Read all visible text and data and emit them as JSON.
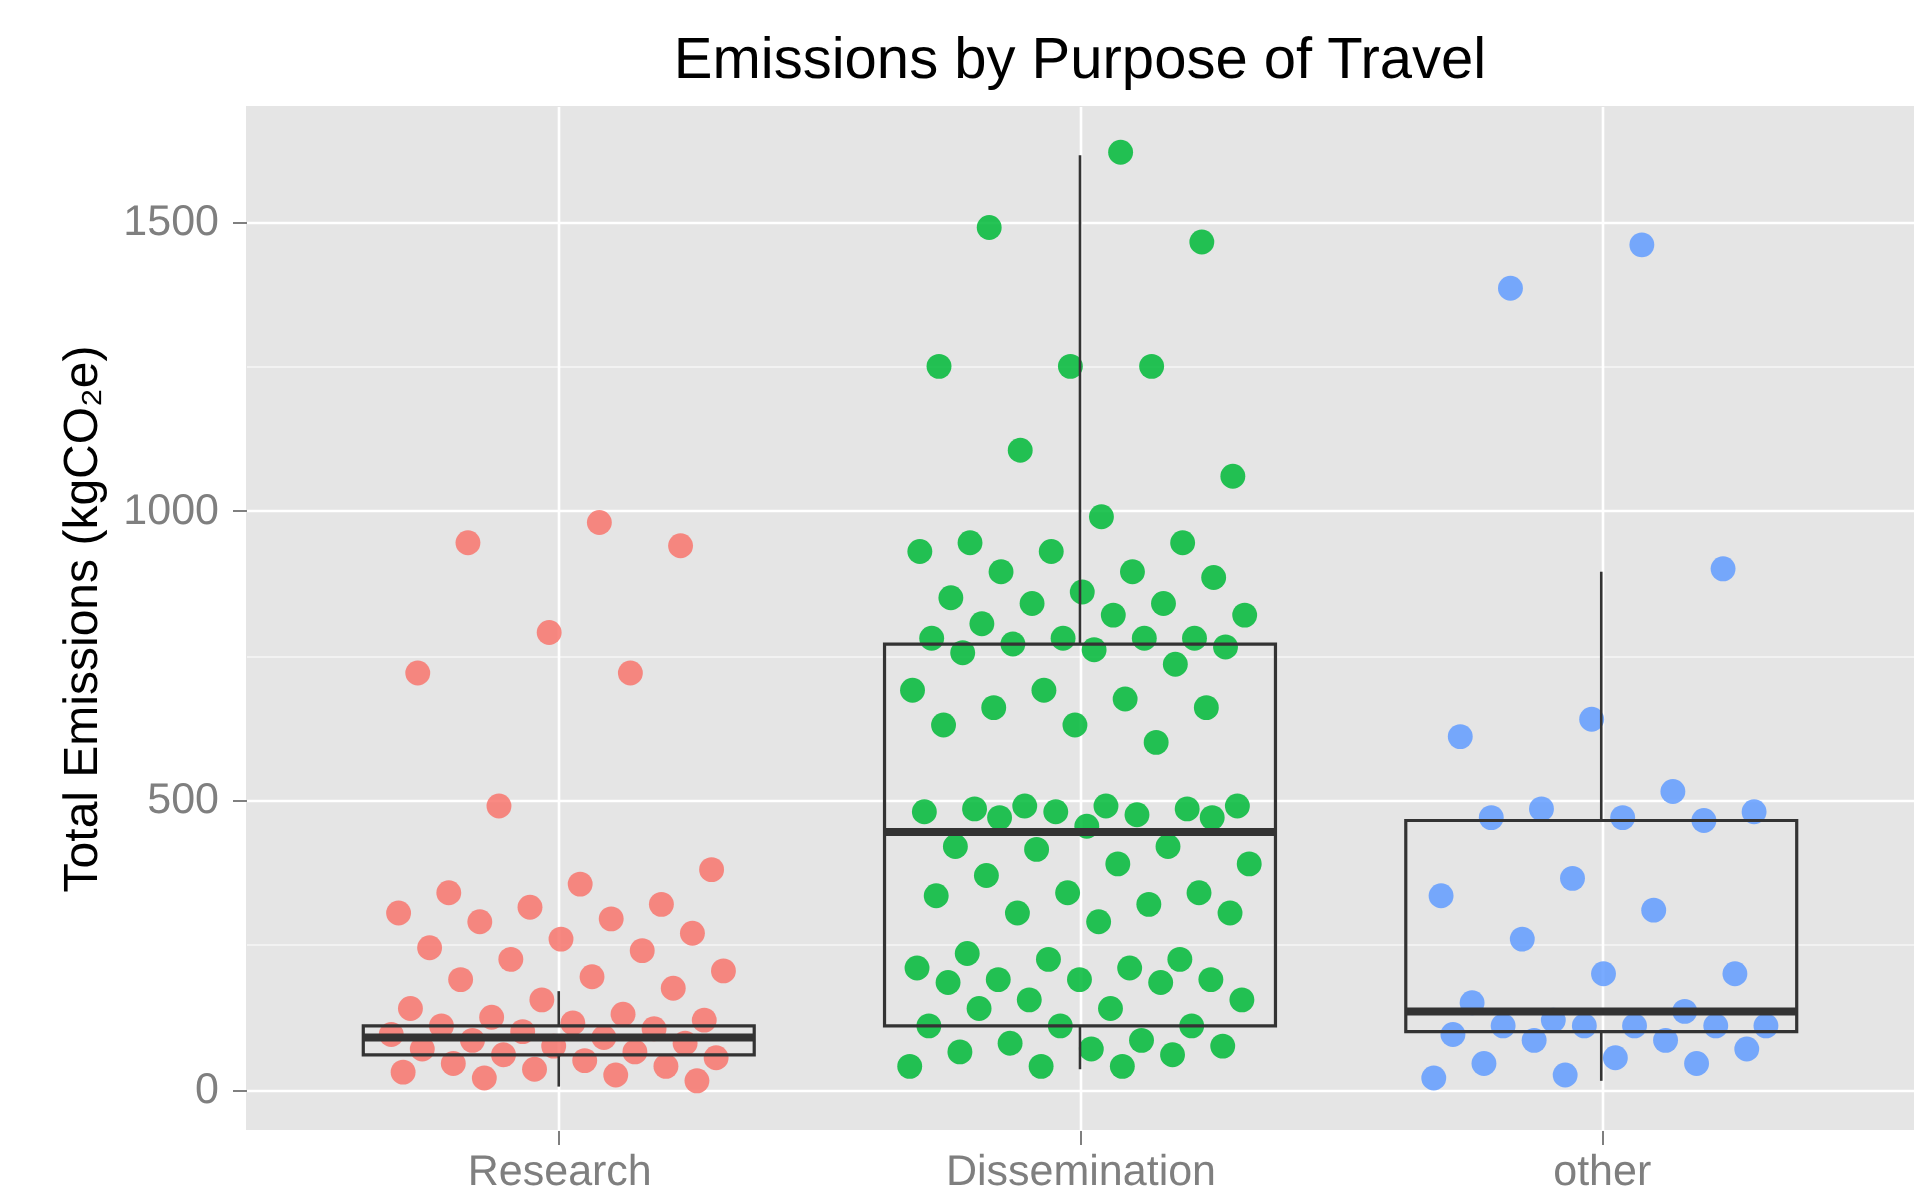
{
  "chart_data": {
    "type": "box",
    "title": "Emissions by Purpose of Travel",
    "ylabel": "Total Emissions (kgCO₂e)",
    "categories": [
      "Research",
      "Dissemination",
      "other"
    ],
    "ylim": [
      -70,
      1700
    ],
    "yticks": [
      0,
      {
        "value": 250,
        "label": null
      },
      500,
      {
        "value": 750,
        "label": null
      },
      1000,
      {
        "value": 1250,
        "label": null
      },
      1500
    ],
    "grid": true,
    "marker": "circle",
    "series": [
      {
        "type": "scatter",
        "color": "#F8766D",
        "x": [
          "Research",
          "Research",
          "Research",
          "Research",
          "Research",
          "Research",
          "Research",
          "Research",
          "Research",
          "Research",
          "Research",
          "Research",
          "Research",
          "Research",
          "Research",
          "Research",
          "Research",
          "Research",
          "Research",
          "Research",
          "Research",
          "Research",
          "Research",
          "Research",
          "Research",
          "Research",
          "Research",
          "Research",
          "Research",
          "Research",
          "Research",
          "Research",
          "Research",
          "Research",
          "Research",
          "Research",
          "Research",
          "Research",
          "Research",
          "Research",
          "Research",
          "Research",
          "Research",
          "Research",
          "Research",
          "Research",
          "Research",
          "Research",
          "Research",
          "Research"
        ],
        "values": [
          980,
          945,
          940,
          790,
          720,
          720,
          490,
          380,
          355,
          340,
          320,
          315,
          305,
          295,
          290,
          270,
          260,
          245,
          240,
          225,
          205,
          195,
          190,
          175,
          155,
          140,
          130,
          125,
          120,
          115,
          110,
          105,
          100,
          95,
          90,
          85,
          80,
          75,
          70,
          65,
          60,
          55,
          50,
          45,
          40,
          35,
          30,
          25,
          20,
          15
        ]
      },
      {
        "type": "scatter",
        "color": "#00BA38",
        "x": [
          "Dissemination",
          "Dissemination",
          "Dissemination",
          "Dissemination",
          "Dissemination",
          "Dissemination",
          "Dissemination",
          "Dissemination",
          "Dissemination",
          "Dissemination",
          "Dissemination",
          "Dissemination",
          "Dissemination",
          "Dissemination",
          "Dissemination",
          "Dissemination",
          "Dissemination",
          "Dissemination",
          "Dissemination",
          "Dissemination",
          "Dissemination",
          "Dissemination",
          "Dissemination",
          "Dissemination",
          "Dissemination",
          "Dissemination",
          "Dissemination",
          "Dissemination",
          "Dissemination",
          "Dissemination",
          "Dissemination",
          "Dissemination",
          "Dissemination",
          "Dissemination",
          "Dissemination",
          "Dissemination",
          "Dissemination",
          "Dissemination",
          "Dissemination",
          "Dissemination",
          "Dissemination",
          "Dissemination",
          "Dissemination",
          "Dissemination",
          "Dissemination",
          "Dissemination",
          "Dissemination",
          "Dissemination",
          "Dissemination",
          "Dissemination",
          "Dissemination",
          "Dissemination",
          "Dissemination",
          "Dissemination",
          "Dissemination",
          "Dissemination",
          "Dissemination",
          "Dissemination",
          "Dissemination",
          "Dissemination",
          "Dissemination",
          "Dissemination",
          "Dissemination",
          "Dissemination",
          "Dissemination",
          "Dissemination",
          "Dissemination",
          "Dissemination",
          "Dissemination",
          "Dissemination",
          "Dissemination",
          "Dissemination",
          "Dissemination",
          "Dissemination",
          "Dissemination",
          "Dissemination",
          "Dissemination",
          "Dissemination",
          "Dissemination",
          "Dissemination",
          "Dissemination",
          "Dissemination",
          "Dissemination",
          "Dissemination",
          "Dissemination",
          "Dissemination",
          "Dissemination",
          "Dissemination",
          "Dissemination",
          "Dissemination"
        ],
        "values": [
          1620,
          1490,
          1465,
          1250,
          1250,
          1250,
          1105,
          1060,
          990,
          945,
          945,
          930,
          930,
          895,
          895,
          885,
          860,
          850,
          840,
          840,
          820,
          820,
          805,
          780,
          780,
          780,
          780,
          770,
          765,
          760,
          755,
          735,
          690,
          690,
          675,
          660,
          660,
          630,
          630,
          600,
          490,
          490,
          490,
          485,
          485,
          480,
          480,
          475,
          470,
          470,
          455,
          420,
          420,
          415,
          390,
          390,
          370,
          340,
          340,
          335,
          320,
          305,
          305,
          290,
          235,
          225,
          225,
          210,
          210,
          190,
          190,
          190,
          185,
          185,
          155,
          155,
          140,
          140,
          110,
          110,
          110,
          85,
          80,
          75,
          70,
          65,
          60,
          40,
          40,
          40
        ]
      },
      {
        "type": "scatter",
        "color": "#619CFF",
        "x": [
          "other",
          "other",
          "other",
          "other",
          "other",
          "other",
          "other",
          "other",
          "other",
          "other",
          "other",
          "other",
          "other",
          "other",
          "other",
          "other",
          "other",
          "other",
          "other",
          "other",
          "other",
          "other",
          "other",
          "other",
          "other",
          "other",
          "other",
          "other",
          "other",
          "other",
          "other",
          "other",
          "other",
          "other"
        ],
        "values": [
          1460,
          1385,
          900,
          640,
          610,
          515,
          485,
          480,
          470,
          470,
          465,
          365,
          335,
          310,
          260,
          200,
          200,
          150,
          135,
          120,
          110,
          110,
          110,
          110,
          110,
          95,
          85,
          85,
          70,
          55,
          45,
          45,
          25,
          20
        ]
      },
      {
        "color": "#333333",
        "boxes": [
          {
            "low": 5,
            "q1": 60,
            "median": 90,
            "q3": 110,
            "high": 170
          },
          {
            "low": 35,
            "q1": 110,
            "median": 445,
            "q3": 770,
            "high": 1615
          },
          {
            "low": 15,
            "q1": 100,
            "median": 135,
            "q3": 465,
            "high": 895
          }
        ]
      }
    ]
  }
}
